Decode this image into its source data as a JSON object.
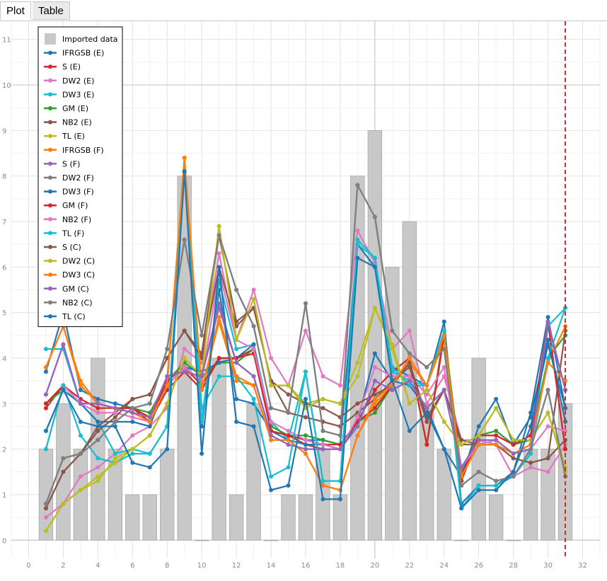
{
  "tabs": [
    {
      "label": "Plot",
      "active": true
    },
    {
      "label": "Table",
      "active": false
    }
  ],
  "chart_data": {
    "type": "line",
    "xlim": [
      -1,
      33
    ],
    "ylim": [
      -0.4,
      11.4
    ],
    "xticks": [
      0,
      2,
      4,
      6,
      8,
      10,
      12,
      14,
      16,
      18,
      20,
      22,
      24,
      26,
      28,
      30,
      32
    ],
    "yticks": [
      0,
      1,
      2,
      3,
      4,
      5,
      6,
      7,
      8,
      9,
      10,
      11
    ],
    "grid": true,
    "legend_position": "top-left",
    "vertical_marker_x": 31,
    "vertical_marker_color": "#d62728",
    "bars": {
      "name": "Imported data",
      "color": "#c8c8c8",
      "x": [
        1,
        2,
        3,
        4,
        5,
        6,
        7,
        8,
        9,
        10,
        11,
        12,
        13,
        14,
        15,
        16,
        17,
        18,
        19,
        20,
        21,
        22,
        23,
        24,
        25,
        26,
        27,
        28,
        29,
        30,
        31
      ],
      "values": [
        2,
        3,
        2,
        4,
        2,
        1,
        1,
        2,
        8,
        0,
        4,
        1,
        3,
        0,
        1,
        1,
        2,
        1,
        8,
        9,
        6,
        7,
        3,
        2,
        0,
        4,
        1,
        0,
        2,
        2,
        3
      ]
    },
    "x": [
      1,
      2,
      3,
      4,
      5,
      6,
      7,
      8,
      9,
      10,
      11,
      12,
      13,
      14,
      15,
      16,
      17,
      18,
      19,
      20,
      21,
      22,
      23,
      24,
      25,
      26,
      27,
      28,
      29,
      30,
      31
    ],
    "series": [
      {
        "name": "IFRGSB (E)",
        "color": "#1f77b4",
        "values": [
          3.7,
          5.0,
          3.3,
          3.1,
          3.0,
          2.9,
          2.7,
          3.5,
          8.1,
          2.5,
          5.5,
          3.1,
          3.0,
          2.4,
          2.3,
          2.2,
          2.2,
          2.1,
          6.5,
          6.0,
          3.8,
          3.6,
          3.4,
          4.8,
          0.8,
          1.2,
          1.2,
          1.5,
          2.8,
          4.9,
          2.9
        ]
      },
      {
        "name": "S (E)",
        "color": "#d62728",
        "values": [
          2.9,
          3.4,
          3.1,
          2.9,
          2.9,
          2.9,
          2.6,
          3.3,
          3.7,
          3.3,
          4.0,
          4.0,
          4.2,
          2.5,
          2.3,
          2.1,
          2.0,
          2.0,
          2.6,
          3.3,
          3.7,
          4.0,
          2.1,
          4.5,
          1.3,
          2.3,
          2.3,
          2.1,
          2.3,
          4.8,
          2.0
        ]
      },
      {
        "name": "DW2 (E)",
        "color": "#e377c2",
        "values": [
          0.5,
          0.8,
          1.4,
          1.6,
          1.9,
          2.3,
          2.5,
          2.9,
          4.2,
          3.9,
          6.3,
          4.4,
          5.5,
          4.0,
          3.4,
          4.6,
          3.6,
          3.4,
          6.8,
          6.1,
          4.2,
          4.6,
          3.0,
          3.6,
          2.2,
          2.2,
          2.1,
          1.4,
          1.6,
          1.5,
          2.1
        ]
      },
      {
        "name": "DW3 (E)",
        "color": "#17becf",
        "values": [
          4.2,
          4.2,
          3.0,
          2.6,
          1.9,
          2.0,
          1.9,
          2.5,
          8.1,
          2.6,
          5.7,
          4.2,
          4.3,
          2.6,
          2.2,
          3.7,
          1.3,
          1.3,
          6.6,
          6.2,
          3.7,
          3.5,
          3.4,
          4.5,
          0.7,
          1.2,
          1.2,
          1.4,
          1.9,
          4.7,
          5.1
        ]
      },
      {
        "name": "GM (E)",
        "color": "#2ca02c",
        "values": [
          3.0,
          3.3,
          3.0,
          3.0,
          2.9,
          2.9,
          2.8,
          3.5,
          3.9,
          3.6,
          3.9,
          3.9,
          4.2,
          2.5,
          2.3,
          2.3,
          2.2,
          2.1,
          2.6,
          2.8,
          3.4,
          4.0,
          2.1,
          4.6,
          1.5,
          2.3,
          2.4,
          2.1,
          2.2,
          4.0,
          4.5
        ]
      },
      {
        "name": "NB2 (E)",
        "color": "#8c564b",
        "values": [
          0.7,
          1.5,
          1.9,
          2.5,
          2.8,
          3.1,
          3.2,
          4.0,
          4.6,
          4.1,
          6.7,
          4.8,
          5.1,
          3.5,
          2.8,
          2.7,
          2.6,
          2.5,
          2.8,
          3.1,
          3.5,
          3.8,
          2.6,
          3.3,
          2.2,
          2.1,
          2.1,
          1.8,
          1.7,
          1.8,
          4.6
        ]
      },
      {
        "name": "TL (E)",
        "color": "#bcbd22",
        "values": [
          0.2,
          0.8,
          1.1,
          1.3,
          1.8,
          2.0,
          2.3,
          3.0,
          4.0,
          3.6,
          6.9,
          4.4,
          5.3,
          3.4,
          3.4,
          3.0,
          3.1,
          3.0,
          3.9,
          5.1,
          4.2,
          3.0,
          3.3,
          2.6,
          2.1,
          2.3,
          2.9,
          2.2,
          2.2,
          2.8,
          1.5
        ]
      },
      {
        "name": "IFRGSB (F)",
        "color": "#ff7f0e",
        "values": [
          3.8,
          4.7,
          3.4,
          3.0,
          2.9,
          2.8,
          2.7,
          3.4,
          8.4,
          3.3,
          4.8,
          3.5,
          3.4,
          2.2,
          2.2,
          1.9,
          1.2,
          1.1,
          2.3,
          3.0,
          3.4,
          3.9,
          3.4,
          4.4,
          1.4,
          2.1,
          2.1,
          1.9,
          2.1,
          3.9,
          4.7
        ]
      },
      {
        "name": "S (F)",
        "color": "#9467bd",
        "values": [
          3.2,
          4.3,
          3.0,
          3.0,
          2.9,
          2.8,
          2.7,
          3.6,
          3.7,
          3.6,
          5.1,
          3.9,
          3.6,
          2.3,
          2.1,
          2.0,
          2.0,
          2.0,
          2.5,
          3.5,
          3.3,
          3.5,
          2.9,
          3.3,
          1.6,
          2.2,
          2.2,
          1.9,
          2.0,
          4.8,
          3.3
        ]
      },
      {
        "name": "DW2 (F)",
        "color": "#7f7f7f",
        "values": [
          0.8,
          1.8,
          1.9,
          2.2,
          2.6,
          2.9,
          3.0,
          4.2,
          6.6,
          4.5,
          6.7,
          5.5,
          4.7,
          2.9,
          2.8,
          5.2,
          2.4,
          2.3,
          7.8,
          7.1,
          4.6,
          4.1,
          3.8,
          4.2,
          1.2,
          1.5,
          1.3,
          1.4,
          2.0,
          3.3,
          1.4
        ]
      },
      {
        "name": "DW3 (F)",
        "color": "#1f77b4",
        "values": [
          2.4,
          3.3,
          3.0,
          2.6,
          2.6,
          2.6,
          2.5,
          3.5,
          3.8,
          3.7,
          3.9,
          4.0,
          4.3,
          2.4,
          2.2,
          2.1,
          2.1,
          2.0,
          2.6,
          4.1,
          3.5,
          3.4,
          2.9,
          2.0,
          1.4,
          2.5,
          3.1,
          2.1,
          2.7,
          4.4,
          2.6
        ]
      },
      {
        "name": "GM (F)",
        "color": "#d62728",
        "values": [
          3.0,
          3.4,
          3.0,
          3.0,
          2.9,
          2.9,
          2.7,
          3.5,
          3.8,
          3.4,
          4.0,
          4.0,
          4.1,
          2.4,
          2.3,
          2.2,
          2.1,
          2.1,
          2.6,
          2.9,
          3.4,
          4.0,
          2.1,
          4.5,
          1.4,
          2.3,
          2.3,
          2.1,
          2.3,
          4.8,
          2.0
        ]
      },
      {
        "name": "NB2 (F)",
        "color": "#e377c2",
        "values": [
          2.0,
          3.4,
          3.0,
          2.8,
          2.8,
          2.7,
          2.6,
          3.4,
          3.8,
          3.5,
          5.9,
          4.4,
          4.2,
          2.6,
          2.4,
          2.2,
          2.1,
          2.0,
          2.7,
          3.8,
          3.6,
          3.6,
          3.2,
          3.8,
          1.6,
          2.1,
          2.2,
          1.9,
          2.0,
          2.5,
          2.4
        ]
      },
      {
        "name": "TL (F)",
        "color": "#17becf",
        "values": [
          2.0,
          3.4,
          2.3,
          1.8,
          1.7,
          1.9,
          1.9,
          2.5,
          8.1,
          2.9,
          3.6,
          3.6,
          3.1,
          1.4,
          1.6,
          3.7,
          1.3,
          1.3,
          6.5,
          6.2,
          3.8,
          3.4,
          3.4,
          4.6,
          0.7,
          1.2,
          1.2,
          1.4,
          1.9,
          4.0,
          5.1
        ]
      },
      {
        "name": "S (C)",
        "color": "#8c564b",
        "values": [
          0.7,
          1.5,
          1.9,
          2.4,
          2.7,
          3.1,
          3.2,
          4.0,
          4.6,
          4.0,
          6.0,
          4.7,
          5.1,
          3.5,
          3.2,
          3.0,
          2.9,
          2.7,
          3.0,
          3.2,
          3.4,
          3.9,
          2.7,
          3.3,
          2.1,
          2.1,
          2.1,
          1.8,
          1.7,
          1.8,
          2.2
        ]
      },
      {
        "name": "DW2 (C)",
        "color": "#bcbd22",
        "values": [
          0.2,
          0.8,
          1.1,
          1.4,
          1.7,
          2.0,
          2.3,
          3.0,
          4.0,
          3.6,
          6.9,
          4.4,
          5.3,
          3.4,
          3.4,
          2.9,
          3.1,
          3.0,
          3.6,
          5.1,
          4.3,
          3.0,
          3.3,
          2.6,
          2.1,
          2.3,
          2.9,
          2.2,
          2.2,
          2.8,
          1.6
        ]
      },
      {
        "name": "DW3 (C)",
        "color": "#ff7f0e",
        "values": [
          3.8,
          4.7,
          3.5,
          3.0,
          2.9,
          2.8,
          2.6,
          3.4,
          8.4,
          3.3,
          4.9,
          3.6,
          3.4,
          2.2,
          2.2,
          1.9,
          1.2,
          1.1,
          2.3,
          3.1,
          3.4,
          4.0,
          3.4,
          4.5,
          1.4,
          2.1,
          2.1,
          1.9,
          2.1,
          3.9,
          3.5
        ]
      },
      {
        "name": "GM (C)",
        "color": "#9467bd",
        "values": [
          3.2,
          4.3,
          3.0,
          3.0,
          2.9,
          2.8,
          2.7,
          3.6,
          3.7,
          3.6,
          5.2,
          3.9,
          3.6,
          2.3,
          2.1,
          2.0,
          2.0,
          2.0,
          2.5,
          3.5,
          3.3,
          3.5,
          2.9,
          3.3,
          1.6,
          2.2,
          2.2,
          1.9,
          2.0,
          4.8,
          3.3
        ]
      },
      {
        "name": "NB2 (C)",
        "color": "#7f7f7f",
        "values": [
          0.8,
          1.8,
          1.9,
          2.2,
          2.6,
          2.9,
          3.0,
          4.2,
          6.6,
          4.5,
          6.7,
          5.5,
          4.7,
          2.9,
          2.8,
          5.2,
          2.4,
          2.3,
          7.8,
          7.1,
          4.6,
          4.1,
          3.8,
          4.2,
          1.2,
          1.5,
          1.3,
          1.4,
          2.0,
          3.3,
          1.4
        ]
      },
      {
        "name": "TL (C)",
        "color": "#1f77b4",
        "values": [
          2.4,
          3.3,
          2.6,
          2.5,
          2.5,
          1.7,
          1.6,
          2.0,
          8.1,
          1.9,
          6.0,
          2.6,
          2.5,
          1.1,
          1.2,
          3.1,
          0.9,
          0.9,
          6.2,
          6.0,
          3.5,
          2.4,
          2.8,
          2.0,
          0.7,
          1.1,
          1.1,
          1.5,
          2.5,
          4.3,
          2.9
        ]
      }
    ]
  }
}
